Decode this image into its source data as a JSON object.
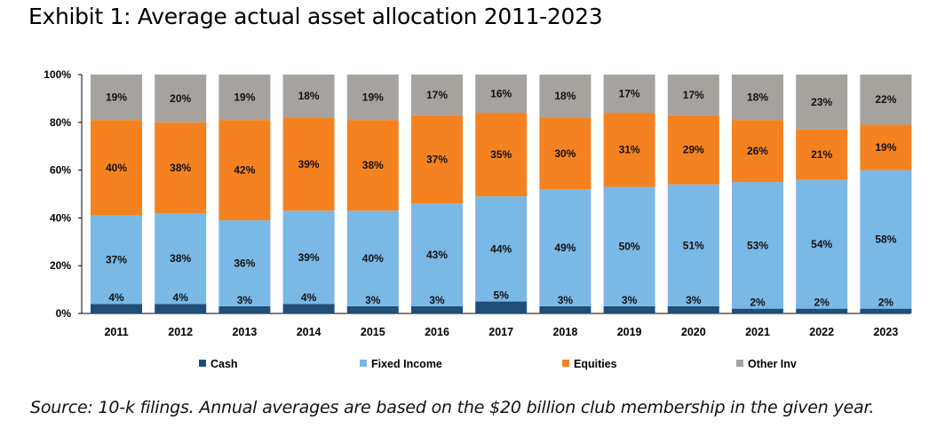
{
  "title": "Exhibit 1: Average actual asset allocation 2011-2023",
  "source": "Source: 10-k filings. Annual averages are based on the $20 billion club membership in the given year.",
  "chart_data": {
    "type": "bar",
    "stacked": true,
    "categories": [
      "2011",
      "2012",
      "2013",
      "2014",
      "2015",
      "2016",
      "2017",
      "2018",
      "2019",
      "2020",
      "2021",
      "2022",
      "2023"
    ],
    "series": [
      {
        "name": "Cash",
        "color": "#1f4e79",
        "values": [
          4,
          4,
          3,
          4,
          3,
          3,
          5,
          3,
          3,
          3,
          2,
          2,
          2
        ]
      },
      {
        "name": "Fixed Income",
        "color": "#7ab8e6",
        "values": [
          37,
          38,
          36,
          39,
          40,
          43,
          44,
          49,
          50,
          51,
          53,
          54,
          58
        ]
      },
      {
        "name": "Equities",
        "color": "#f58220",
        "values": [
          40,
          38,
          42,
          39,
          38,
          37,
          35,
          30,
          31,
          29,
          26,
          21,
          19
        ]
      },
      {
        "name": "Other Inv",
        "color": "#a6a29e",
        "values": [
          19,
          20,
          19,
          18,
          19,
          17,
          16,
          18,
          17,
          17,
          18,
          23,
          22
        ]
      }
    ],
    "yticks": [
      "0%",
      "20%",
      "40%",
      "60%",
      "80%",
      "100%"
    ],
    "ylim": [
      0,
      100
    ],
    "legend_position": "bottom",
    "grid": false
  }
}
